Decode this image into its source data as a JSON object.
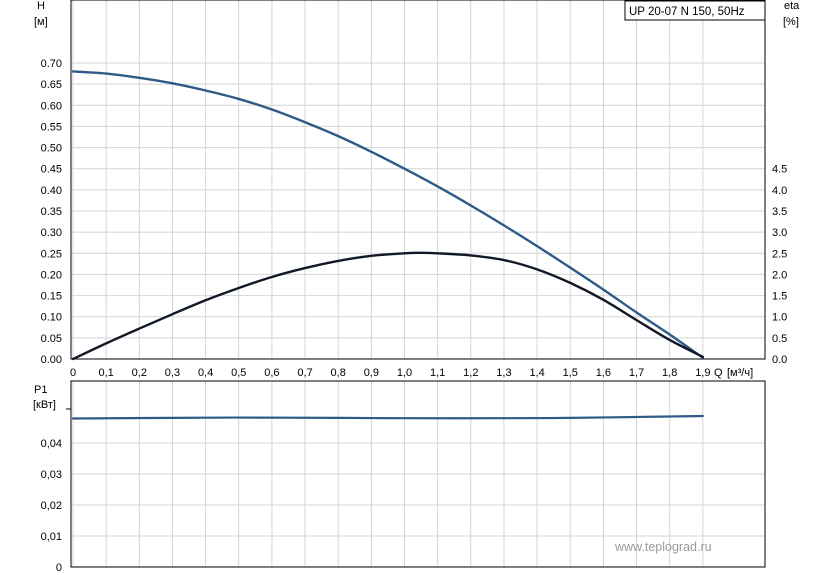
{
  "chart_data": [
    {
      "type": "line",
      "legend": "UP 20-07 N 150, 50Hz",
      "left_axis": {
        "name": "H",
        "unit": "[м]",
        "range": [
          0,
          0.7
        ],
        "ticks": [
          "0.00",
          "0.05",
          "0.10",
          "0.15",
          "0.20",
          "0.25",
          "0.30",
          "0.35",
          "0.40",
          "0.45",
          "0.50",
          "0.55",
          "0.60",
          "0.65",
          "0.70"
        ]
      },
      "right_axis": {
        "name": "eta",
        "unit": "[%]",
        "range": [
          0,
          7
        ],
        "ticks": [
          "0.0",
          "0.5",
          "1.0",
          "1.5",
          "2.0",
          "2.5",
          "3.0",
          "3.5",
          "4.0",
          "4.5"
        ]
      },
      "x_axis": {
        "name": "Q",
        "unit": "[м³/ч]",
        "range": [
          0,
          2.0
        ],
        "ticks": [
          "0",
          "0,1",
          "0,2",
          "0,3",
          "0,4",
          "0,5",
          "0,6",
          "0,7",
          "0,8",
          "0,9",
          "1,0",
          "1,1",
          "1,2",
          "1,3",
          "1,4",
          "1,5",
          "1,6",
          "1,7",
          "1,8",
          "1,9"
        ]
      },
      "grid": true,
      "series": [
        {
          "axis": "left",
          "color": "#2e5a88",
          "x": [
            0,
            0.1,
            0.2,
            0.3,
            0.4,
            0.5,
            0.6,
            0.7,
            0.8,
            0.9,
            1.0,
            1.1,
            1.2,
            1.3,
            1.4,
            1.5,
            1.6,
            1.7,
            1.8,
            1.9
          ],
          "y": [
            0.68,
            0.675,
            0.665,
            0.652,
            0.635,
            0.615,
            0.59,
            0.56,
            0.527,
            0.49,
            0.45,
            0.408,
            0.363,
            0.316,
            0.267,
            0.216,
            0.164,
            0.11,
            0.058,
            0.003
          ]
        },
        {
          "axis": "right",
          "color": "#111827",
          "x": [
            0,
            0.1,
            0.2,
            0.3,
            0.4,
            0.5,
            0.6,
            0.7,
            0.8,
            0.9,
            1.0,
            1.05,
            1.1,
            1.2,
            1.3,
            1.4,
            1.5,
            1.6,
            1.7,
            1.8,
            1.9
          ],
          "y": [
            0.0,
            0.37,
            0.72,
            1.06,
            1.39,
            1.68,
            1.94,
            2.15,
            2.32,
            2.44,
            2.5,
            2.51,
            2.5,
            2.45,
            2.34,
            2.12,
            1.8,
            1.4,
            0.92,
            0.45,
            0.05
          ]
        }
      ]
    },
    {
      "type": "line",
      "y_axis": {
        "name": "P1",
        "unit": "[кВт]",
        "range": [
          0,
          0.05
        ],
        "ticks": [
          "0",
          "0,01",
          "0,02",
          "0,03",
          "0,04"
        ]
      },
      "x_range": [
        0,
        2.0
      ],
      "grid": true,
      "series": [
        {
          "color": "#2e5a88",
          "x": [
            0,
            0.3,
            0.5,
            0.8,
            1.0,
            1.3,
            1.5,
            1.7,
            1.9
          ],
          "y": [
            0.0479,
            0.0481,
            0.0482,
            0.0481,
            0.048,
            0.048,
            0.0481,
            0.0484,
            0.0487
          ]
        }
      ]
    }
  ],
  "watermark": "www.teplograd.ru"
}
